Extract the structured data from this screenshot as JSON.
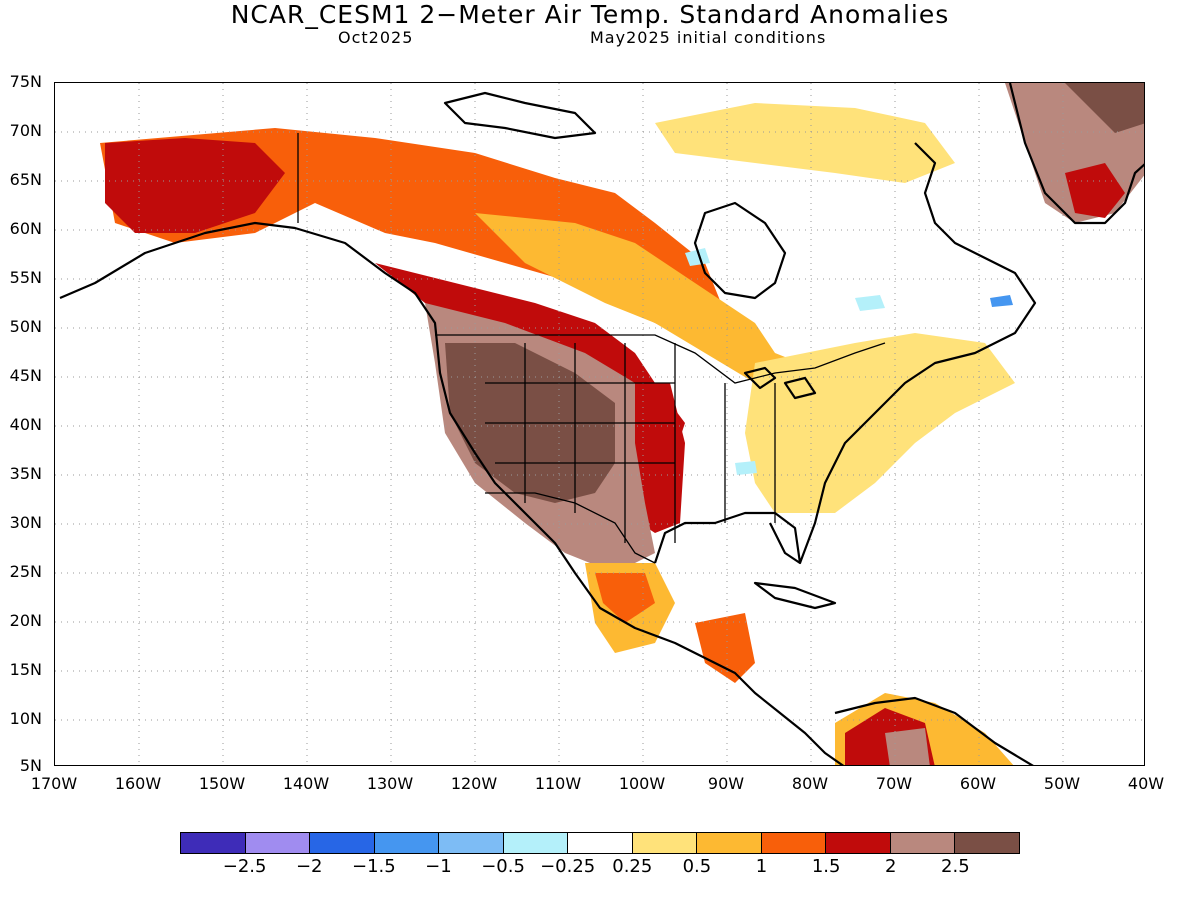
{
  "header": {
    "title": "NCAR_CESM1 2−Meter Air Temp. Standard Anomalies",
    "valid_month": "Oct2025",
    "init": "May2025 initial conditions"
  },
  "axes": {
    "lat_labels": [
      "75N",
      "70N",
      "65N",
      "60N",
      "55N",
      "50N",
      "45N",
      "40N",
      "35N",
      "30N",
      "25N",
      "20N",
      "15N",
      "10N",
      "5N"
    ],
    "lon_labels": [
      "170W",
      "160W",
      "150W",
      "140W",
      "130W",
      "120W",
      "110W",
      "100W",
      "90W",
      "80W",
      "70W",
      "60W",
      "50W",
      "40W"
    ]
  },
  "legend": {
    "colors": [
      "#3e2cb8",
      "#a08cf0",
      "#2766e6",
      "#4596f0",
      "#7dbcf5",
      "#b4f0fa",
      "#ffffff",
      "#ffe27a",
      "#fdb932",
      "#f85f0a",
      "#c00b0b",
      "#b9887e",
      "#7a4f45"
    ],
    "labels": [
      "−2.5",
      "−2",
      "−1.5",
      "−1",
      "−0.5",
      "−0.25",
      "0.25",
      "0.5",
      "1",
      "1.5",
      "2",
      "2.5"
    ]
  },
  "map_colors": {
    "orange_red": "#f85f0a",
    "dark_red": "#c00b0b",
    "light_orange": "#fdb932",
    "pale_yellow": "#ffe27a",
    "light_brown": "#b9887e",
    "dark_brown": "#7a4f45",
    "light_cyan": "#b4f0fa",
    "blue": "#4596f0"
  }
}
